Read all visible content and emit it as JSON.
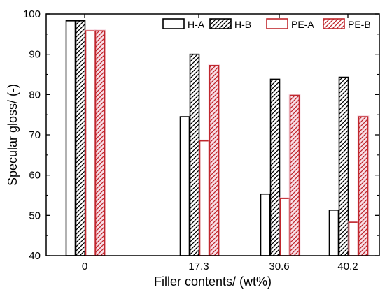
{
  "chart_data": {
    "type": "bar",
    "xlabel": "Filler contents/ (wt%)",
    "ylabel": "Specular gloss/ (-)",
    "categories": [
      "0",
      "17.3",
      "30.6",
      "40.2"
    ],
    "ylim": [
      40,
      100
    ],
    "yticks": [
      40,
      50,
      60,
      70,
      80,
      90,
      100
    ],
    "legend_position": "top-right",
    "series": [
      {
        "name": "H-A",
        "values": [
          98.3,
          74.5,
          55.3,
          51.3
        ],
        "color": "#000000",
        "pattern": "none"
      },
      {
        "name": "H-B",
        "values": [
          98.3,
          90.0,
          83.8,
          84.3
        ],
        "color": "#000000",
        "pattern": "hatch"
      },
      {
        "name": "PE-A",
        "values": [
          95.8,
          68.5,
          54.2,
          48.3
        ],
        "color": "#c0272d",
        "pattern": "none"
      },
      {
        "name": "PE-B",
        "values": [
          95.8,
          87.2,
          79.8,
          74.5
        ],
        "color": "#c0272d",
        "pattern": "hatch"
      }
    ]
  }
}
